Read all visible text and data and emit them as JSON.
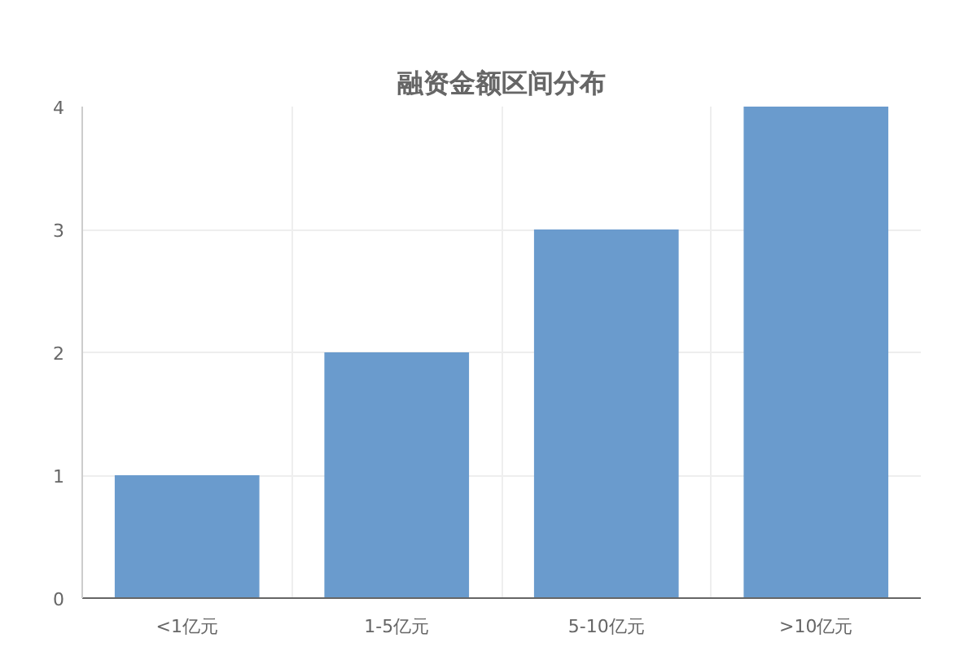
{
  "chart_data": {
    "type": "bar",
    "title": "融资金额区间分布",
    "categories": [
      "<1亿元",
      "1-5亿元",
      "5-10亿元",
      ">10亿元"
    ],
    "values": [
      1,
      2,
      3,
      4
    ],
    "color": "#6a9bcd",
    "ylim": [
      0,
      4
    ],
    "yticks": [
      0,
      1,
      2,
      3,
      4
    ],
    "grid": true
  }
}
